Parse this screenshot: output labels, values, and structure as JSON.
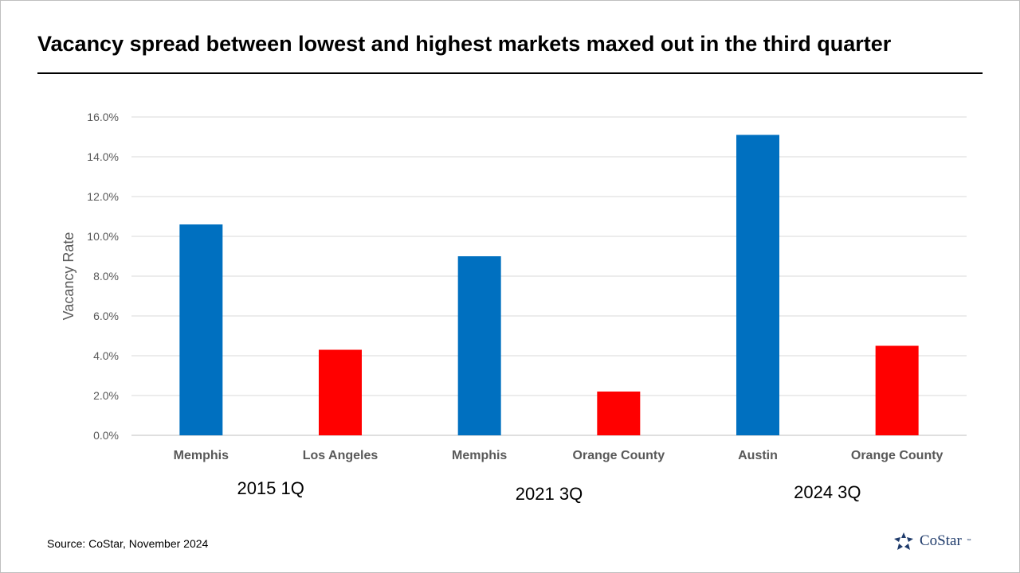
{
  "chart_data": {
    "type": "bar",
    "title": "Vacancy spread between lowest and highest markets maxed out in the third quarter",
    "ylabel": "Vacancy Rate",
    "xlabel": "",
    "ylim": [
      0,
      16
    ],
    "yticks": [
      "0.0%",
      "2.0%",
      "4.0%",
      "6.0%",
      "8.0%",
      "10.0%",
      "12.0%",
      "14.0%",
      "16.0%"
    ],
    "grid": true,
    "categories": [
      "Memphis",
      "Los Angeles",
      "Memphis",
      "Orange County",
      "Austin",
      "Orange County"
    ],
    "values": [
      10.6,
      4.3,
      9.0,
      2.2,
      15.1,
      4.5
    ],
    "bar_colors": [
      "#0070c0",
      "#ff0000",
      "#0070c0",
      "#ff0000",
      "#0070c0",
      "#ff0000"
    ],
    "groups": [
      {
        "label": "2015 1Q",
        "categories": [
          0,
          1
        ]
      },
      {
        "label": "2021 3Q",
        "categories": [
          2,
          3
        ]
      },
      {
        "label": "2024 3Q",
        "categories": [
          4,
          5
        ]
      }
    ]
  },
  "footer": {
    "source": "Source: CoStar, November 2024",
    "logo_text": "CoStar",
    "logo_tm": "™"
  },
  "colors": {
    "highest": "#0070c0",
    "lowest": "#ff0000",
    "grid": "#d9d9d9",
    "axis_text": "#595959"
  }
}
